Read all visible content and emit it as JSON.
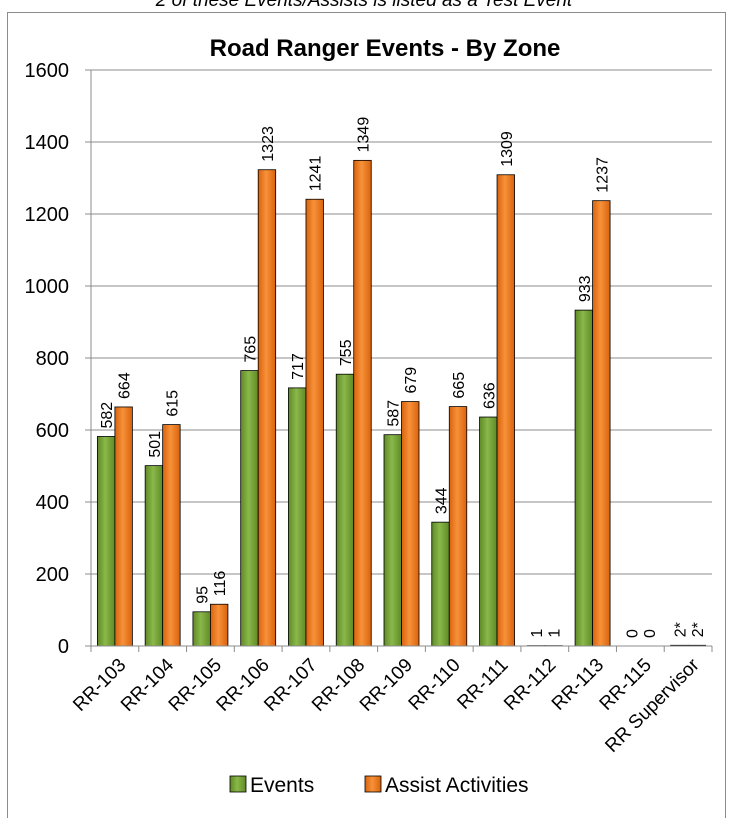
{
  "chart_data": {
    "type": "bar",
    "top_note": "2 of these Events/Assists is listed as a Test Event",
    "title": "Road Ranger Events - By Zone",
    "xlabel": "",
    "ylabel": "",
    "ylim": [
      0,
      1600
    ],
    "yticks": [
      0,
      200,
      400,
      600,
      800,
      1000,
      1200,
      1400,
      1600
    ],
    "grid": true,
    "legend_position": "bottom",
    "categories": [
      "RR-103",
      "RR-104",
      "RR-105",
      "RR-106",
      "RR-107",
      "RR-108",
      "RR-109",
      "RR-110",
      "RR-111",
      "RR-112",
      "RR-113",
      "RR-115",
      "RR Supervisor"
    ],
    "series": [
      {
        "name": "Events",
        "color": "#77a33a",
        "values": [
          582,
          501,
          95,
          765,
          717,
          755,
          587,
          344,
          636,
          1,
          933,
          0,
          2
        ],
        "labels": [
          "582",
          "501",
          "95",
          "765",
          "717",
          "755",
          "587",
          "344",
          "636",
          "1",
          "933",
          "0",
          "2*"
        ]
      },
      {
        "name": "Assist Activities",
        "color": "#f07d1e",
        "values": [
          664,
          615,
          116,
          1323,
          1241,
          1349,
          679,
          665,
          1309,
          1,
          1237,
          0,
          2
        ],
        "labels": [
          "664",
          "615",
          "116",
          "1323",
          "1241",
          "1349",
          "679",
          "665",
          "1309",
          "1",
          "1237",
          "0",
          "2*"
        ]
      }
    ]
  }
}
